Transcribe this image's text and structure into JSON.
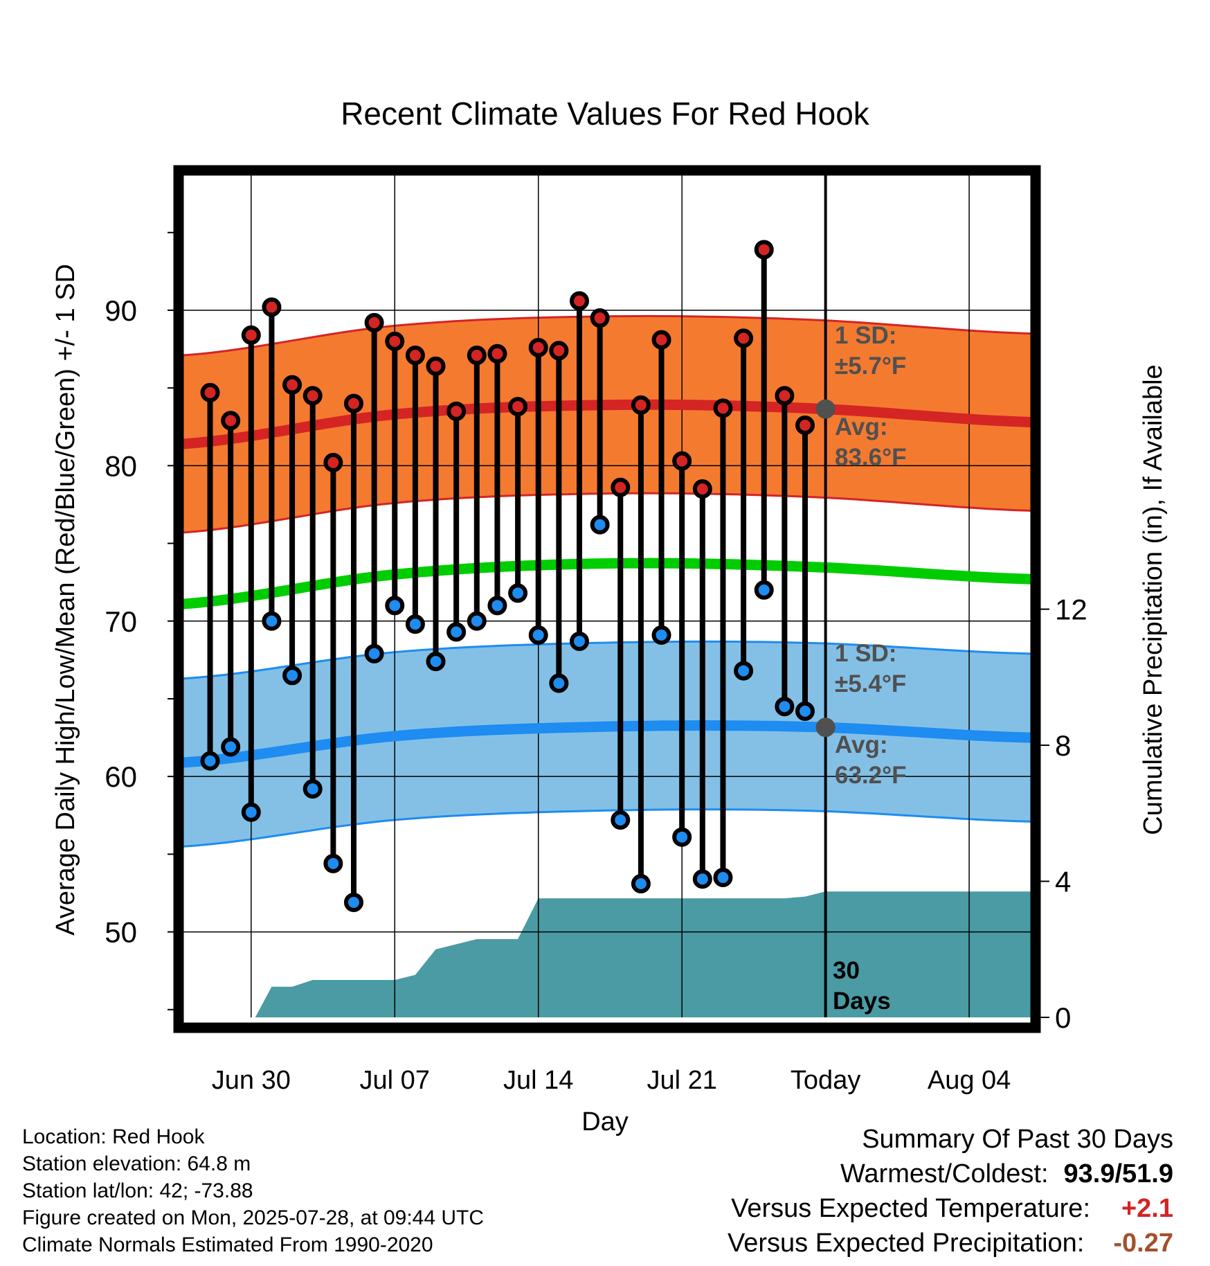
{
  "chart_data": {
    "type": "line",
    "title": "Recent Climate Values For Red Hook",
    "xlabel": "Day",
    "ylabel": "Average Daily High/Low/Mean (Red/Blue/Green) +/- 1 SD",
    "y2label": "Cumulative Precipitation (in), If Available",
    "ylim": [
      44.5,
      99
    ],
    "y2lim": [
      0,
      24.9
    ],
    "yticks": [
      "50",
      "60",
      "70",
      "80",
      "90"
    ],
    "y2ticks": [
      "0",
      "4",
      "8",
      "12"
    ],
    "xlim": [
      "2025-06-26.7",
      "2025-08-07.0"
    ],
    "xticks": [
      {
        "date": "2025-06-30",
        "label": "Jun 30"
      },
      {
        "date": "2025-07-07",
        "label": "Jul 07"
      },
      {
        "date": "2025-07-14",
        "label": "Jul 14"
      },
      {
        "date": "2025-07-21",
        "label": "Jul 21"
      },
      {
        "date": "2025-07-28",
        "label": "Today"
      },
      {
        "date": "2025-08-04",
        "label": "Aug 04"
      }
    ],
    "today": "2025-07-28",
    "period_label": "30 Days",
    "dates": [
      "2025-06-28",
      "2025-06-29",
      "2025-06-30",
      "2025-07-01",
      "2025-07-02",
      "2025-07-03",
      "2025-07-04",
      "2025-07-05",
      "2025-07-06",
      "2025-07-07",
      "2025-07-08",
      "2025-07-09",
      "2025-07-10",
      "2025-07-11",
      "2025-07-12",
      "2025-07-13",
      "2025-07-14",
      "2025-07-15",
      "2025-07-16",
      "2025-07-17",
      "2025-07-18",
      "2025-07-19",
      "2025-07-20",
      "2025-07-21",
      "2025-07-22",
      "2025-07-23",
      "2025-07-24",
      "2025-07-25",
      "2025-07-26",
      "2025-07-27"
    ],
    "highs": [
      84.7,
      82.9,
      88.4,
      90.2,
      85.2,
      84.5,
      80.2,
      84.0,
      89.2,
      88.0,
      87.1,
      86.4,
      83.5,
      87.1,
      87.2,
      83.8,
      87.6,
      87.4,
      90.6,
      89.5,
      78.6,
      83.9,
      88.1,
      80.3,
      78.5,
      83.7,
      88.2,
      93.9,
      84.5,
      82.6
    ],
    "lows": [
      61.0,
      61.9,
      57.7,
      70.0,
      66.5,
      59.2,
      54.4,
      51.9,
      67.9,
      71.0,
      69.8,
      67.4,
      69.3,
      70.0,
      71.0,
      71.8,
      69.1,
      66.0,
      68.7,
      76.2,
      57.2,
      53.1,
      69.1,
      56.1,
      53.4,
      53.5,
      66.8,
      72.0,
      64.5,
      64.2
    ],
    "normals_x": [
      "2025-06-26.7",
      "2025-07-07",
      "2025-07-17",
      "2025-07-27",
      "2025-08-07.0"
    ],
    "normal_high": [
      81.4,
      83.3,
      83.9,
      83.7,
      82.8
    ],
    "normal_low": [
      60.9,
      62.6,
      63.2,
      63.2,
      62.5
    ],
    "normal_mean": [
      71.1,
      73.0,
      73.7,
      73.5,
      72.7
    ],
    "sd_high": 5.7,
    "sd_low": 5.4,
    "precip_x": [
      "2025-06-30.2",
      "2025-07-01",
      "2025-07-02",
      "2025-07-03",
      "2025-07-07",
      "2025-07-08",
      "2025-07-09",
      "2025-07-10",
      "2025-07-11",
      "2025-07-13",
      "2025-07-14",
      "2025-07-26",
      "2025-07-27",
      "2025-07-28",
      "2025-08-07.0"
    ],
    "precip_cum": [
      0,
      0.9,
      0.9,
      1.1,
      1.1,
      1.25,
      2.0,
      2.15,
      2.3,
      2.3,
      3.5,
      3.5,
      3.55,
      3.7,
      3.7
    ],
    "annotations": {
      "high_sd_line1": "1 SD:",
      "high_sd_line2": "±5.7°F",
      "high_avg_line1": "Avg:",
      "high_avg_line2": "83.6°F",
      "low_sd_line1": "1 SD:",
      "low_sd_line2": "±5.4°F",
      "low_avg_line1": "Avg:",
      "low_avg_line2": "63.2°F"
    },
    "colors": {
      "high_band": "#f47a30",
      "high_line": "#d42424",
      "low_band": "#84c0e6",
      "low_line": "#1e8cf0",
      "mean_line": "#00cd00",
      "precip": "#4a9ba4",
      "annotation": "#505050",
      "high_marker": "#d42424",
      "low_marker": "#1e8cf0"
    }
  },
  "info": {
    "location": "Location: Red Hook",
    "elevation": "Station elevation: 64.8 m",
    "latlon": "Station lat/lon: 42; -73.88",
    "created": "Figure created on Mon, 2025-07-28, at 09:44 UTC",
    "normals": "Climate Normals Estimated From 1990-2020"
  },
  "summary": {
    "heading": "Summary Of Past 30 Days",
    "warm_cold_label": "Warmest/Coldest:",
    "warm_cold_value": "93.9/51.9",
    "temp_label": "Versus Expected Temperature:",
    "temp_value": "+2.1",
    "temp_color": "#d42424",
    "precip_label": "Versus Expected Precipitation:",
    "precip_value": "-0.27",
    "precip_color": "#a0522d"
  }
}
